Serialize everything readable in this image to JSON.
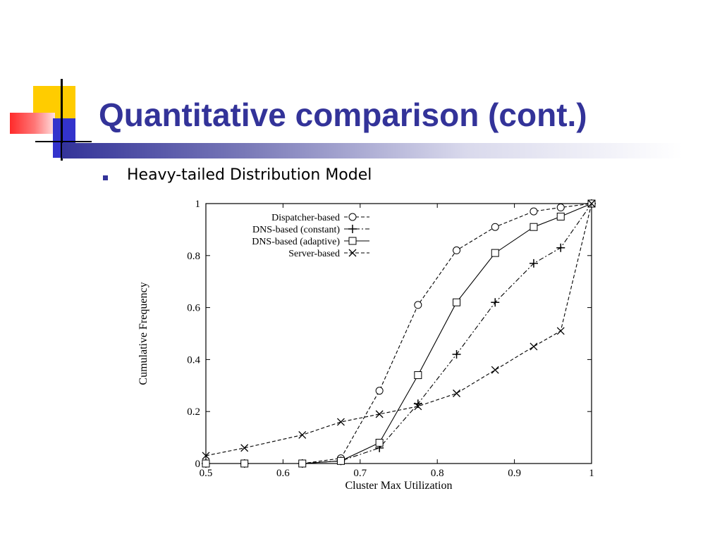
{
  "slide": {
    "title": "Quantitative comparison (cont.)",
    "bullet": "Heavy-tailed Distribution Model"
  },
  "colors": {
    "title": "#333399",
    "deco_yellow": "#ffcc00",
    "deco_red": "#ff3333",
    "deco_blue": "#3333cc"
  },
  "chart_data": {
    "type": "line",
    "xlabel": "Cluster Max Utilization",
    "ylabel": "Cumulative Frequency",
    "xlim": [
      0.5,
      1.0
    ],
    "ylim": [
      0,
      1.0
    ],
    "xticks": [
      "0.5",
      "0.6",
      "0.7",
      "0.8",
      "0.9",
      "1"
    ],
    "yticks": [
      "0",
      "0.2",
      "0.4",
      "0.6",
      "0.8",
      "1"
    ],
    "legend_position": "top-left",
    "grid": false,
    "series": [
      {
        "name": "Dispatcher-based",
        "marker": "circle",
        "dash": "dashed",
        "points": [
          [
            0.5,
            0.0
          ],
          [
            0.55,
            0.0
          ],
          [
            0.625,
            0.0
          ],
          [
            0.675,
            0.02
          ],
          [
            0.725,
            0.28
          ],
          [
            0.775,
            0.61
          ],
          [
            0.825,
            0.82
          ],
          [
            0.875,
            0.91
          ],
          [
            0.925,
            0.97
          ],
          [
            0.96,
            0.985
          ],
          [
            1.0,
            1.0
          ]
        ]
      },
      {
        "name": "DNS-based (constant)",
        "marker": "plus",
        "dash": "dashdot",
        "points": [
          [
            0.5,
            0.0
          ],
          [
            0.55,
            0.0
          ],
          [
            0.625,
            0.0
          ],
          [
            0.675,
            0.01
          ],
          [
            0.725,
            0.06
          ],
          [
            0.775,
            0.23
          ],
          [
            0.825,
            0.42
          ],
          [
            0.875,
            0.62
          ],
          [
            0.925,
            0.77
          ],
          [
            0.96,
            0.83
          ],
          [
            1.0,
            1.0
          ]
        ]
      },
      {
        "name": "DNS-based (adaptive)",
        "marker": "square",
        "dash": "solid",
        "points": [
          [
            0.5,
            0.0
          ],
          [
            0.55,
            0.0
          ],
          [
            0.625,
            0.0
          ],
          [
            0.675,
            0.01
          ],
          [
            0.725,
            0.08
          ],
          [
            0.775,
            0.34
          ],
          [
            0.825,
            0.62
          ],
          [
            0.875,
            0.81
          ],
          [
            0.925,
            0.91
          ],
          [
            0.96,
            0.95
          ],
          [
            1.0,
            1.0
          ]
        ]
      },
      {
        "name": "Server-based",
        "marker": "x",
        "dash": "dashed",
        "points": [
          [
            0.5,
            0.03
          ],
          [
            0.55,
            0.06
          ],
          [
            0.625,
            0.11
          ],
          [
            0.675,
            0.16
          ],
          [
            0.725,
            0.19
          ],
          [
            0.775,
            0.22
          ],
          [
            0.825,
            0.27
          ],
          [
            0.875,
            0.36
          ],
          [
            0.925,
            0.45
          ],
          [
            0.96,
            0.51
          ],
          [
            1.0,
            1.0
          ]
        ]
      }
    ]
  }
}
